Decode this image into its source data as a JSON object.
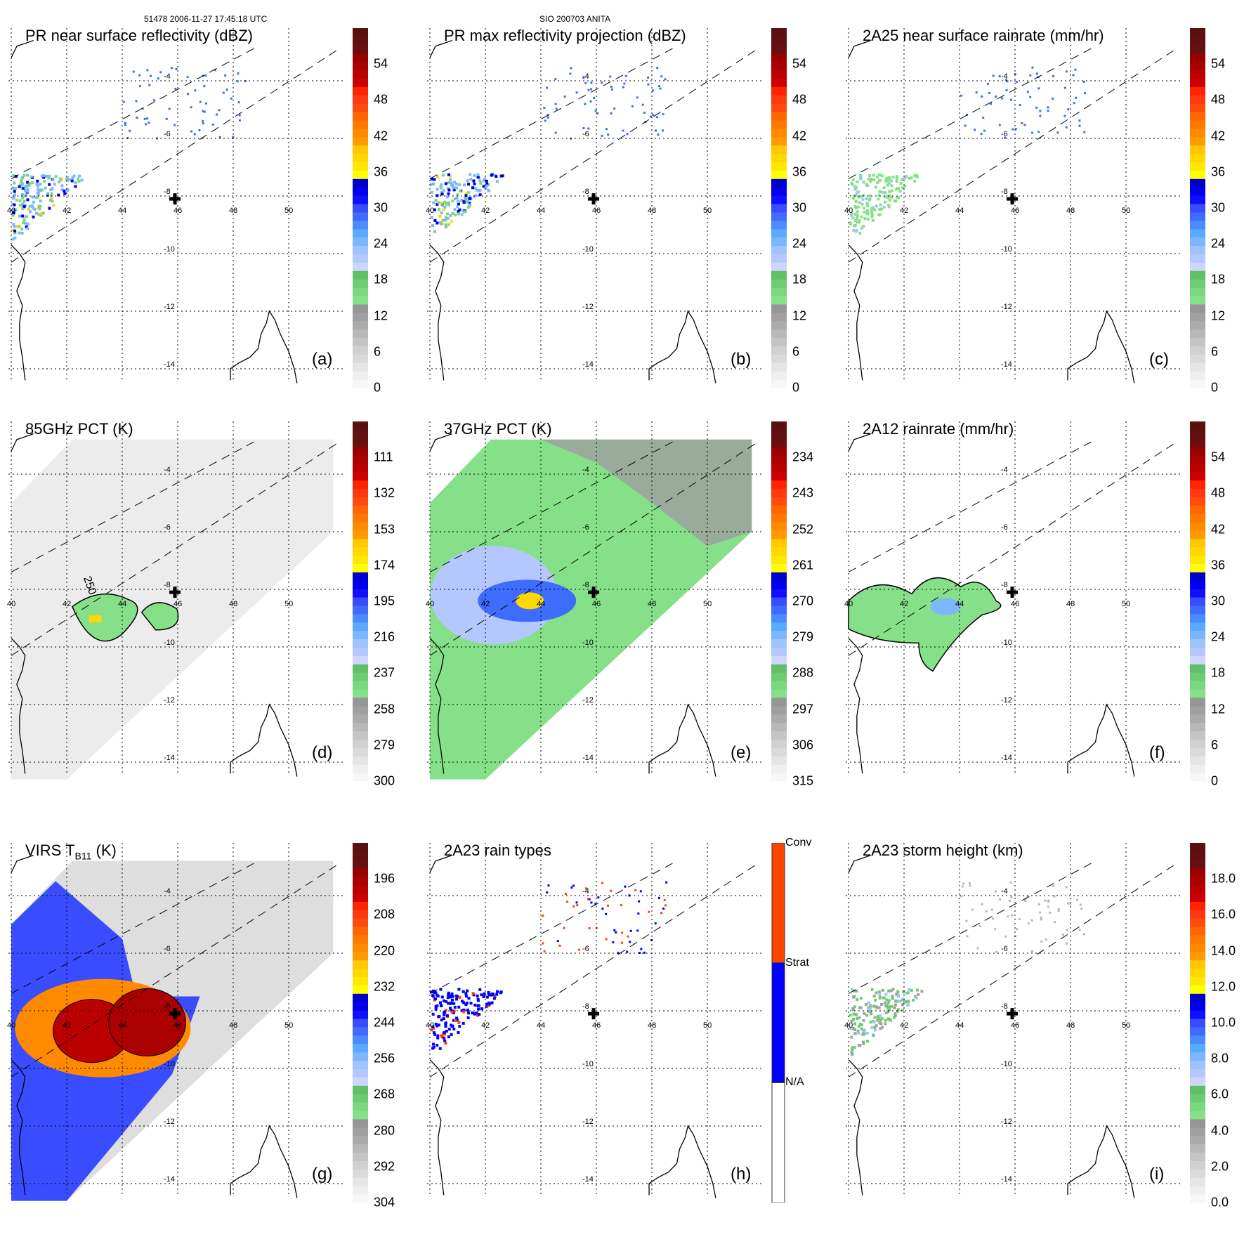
{
  "header": {
    "left": "51478 2006-11-27 17:45:18 UTC",
    "center": "SIO 200703 ANITA"
  },
  "chart_data": [
    {
      "id": "a",
      "type": "heatmap",
      "title": "PR near surface reflectivity (dBZ)",
      "panel_label": "(a)",
      "units": "dBZ",
      "colorbar_ticks": [
        "0",
        "6",
        "12",
        "18",
        "24",
        "30",
        "36",
        "42",
        "48",
        "54"
      ],
      "colorbar_range": [
        0,
        60
      ],
      "x_ticks": [
        "40",
        "42",
        "44",
        "46",
        "48",
        "50"
      ],
      "y_ticks": [
        "-4",
        "-6",
        "-8",
        "-10",
        "-12",
        "-14"
      ],
      "xlim": [
        40,
        52
      ],
      "ylim": [
        -14.5,
        -2.8
      ],
      "features": "PR swath (dashed boundaries); rain echoes mainly near 40-44E, 7.5-9.5S, max ~36-42 dBZ"
    },
    {
      "id": "b",
      "type": "heatmap",
      "title": "PR max reflectivity projection (dBZ)",
      "panel_label": "(b)",
      "units": "dBZ",
      "colorbar_ticks": [
        "0",
        "6",
        "12",
        "18",
        "24",
        "30",
        "36",
        "42",
        "48",
        "54"
      ],
      "colorbar_range": [
        0,
        60
      ],
      "x_ticks": [
        "40",
        "42",
        "44",
        "46",
        "48",
        "50"
      ],
      "y_ticks": [
        "-4",
        "-6",
        "-8",
        "-10",
        "-12",
        "-14"
      ],
      "xlim": [
        40,
        52
      ],
      "ylim": [
        -14.5,
        -2.8
      ]
    },
    {
      "id": "c",
      "type": "heatmap",
      "title": "2A25 near surface rainrate (mm/hr)",
      "panel_label": "(c)",
      "units": "mm/hr",
      "colorbar_ticks": [
        "0",
        "6",
        "12",
        "18",
        "24",
        "30",
        "36",
        "42",
        "48",
        "54"
      ],
      "colorbar_range": [
        0,
        60
      ],
      "x_ticks": [
        "40",
        "42",
        "44",
        "46",
        "48",
        "50"
      ],
      "y_ticks": [
        "-4",
        "-6",
        "-8",
        "-10",
        "-12",
        "-14"
      ],
      "xlim": [
        40,
        52
      ],
      "ylim": [
        -14.5,
        -2.8
      ]
    },
    {
      "id": "d",
      "type": "heatmap",
      "title": "85GHz PCT (K)",
      "panel_label": "(d)",
      "units": "K",
      "colorbar_ticks": [
        "300",
        "279",
        "258",
        "237",
        "216",
        "195",
        "174",
        "153",
        "132",
        "111"
      ],
      "colorbar_range": [
        300,
        90
      ],
      "x_ticks": [
        "40",
        "42",
        "44",
        "46",
        "48",
        "50"
      ],
      "y_ticks": [
        "-4",
        "-6",
        "-8",
        "-10",
        "-12",
        "-14"
      ],
      "xlim": [
        40,
        52
      ],
      "ylim": [
        -14.5,
        -2.8
      ],
      "annotations": [
        "250"
      ]
    },
    {
      "id": "e",
      "type": "heatmap",
      "title": "37GHz PCT (K)",
      "panel_label": "(e)",
      "units": "K",
      "colorbar_ticks": [
        "315",
        "306",
        "297",
        "288",
        "279",
        "270",
        "261",
        "252",
        "243",
        "234"
      ],
      "colorbar_range": [
        315,
        225
      ],
      "x_ticks": [
        "40",
        "42",
        "44",
        "46",
        "48",
        "50"
      ],
      "y_ticks": [
        "-4",
        "-6",
        "-8",
        "-10",
        "-12",
        "-14"
      ],
      "xlim": [
        40,
        52
      ],
      "ylim": [
        -14.5,
        -2.8
      ]
    },
    {
      "id": "f",
      "type": "heatmap",
      "title": "2A12 rainrate (mm/hr)",
      "panel_label": "(f)",
      "units": "mm/hr",
      "colorbar_ticks": [
        "0",
        "6",
        "12",
        "18",
        "24",
        "30",
        "36",
        "42",
        "48",
        "54"
      ],
      "colorbar_range": [
        0,
        60
      ],
      "x_ticks": [
        "40",
        "42",
        "44",
        "46",
        "48",
        "50"
      ],
      "y_ticks": [
        "-4",
        "-6",
        "-8",
        "-10",
        "-12",
        "-14"
      ],
      "xlim": [
        40,
        52
      ],
      "ylim": [
        -14.5,
        -2.8
      ]
    },
    {
      "id": "g",
      "type": "heatmap",
      "title": "VIRS T",
      "title_sub": "B11",
      "title_suffix": " (K)",
      "panel_label": "(g)",
      "units": "K",
      "colorbar_ticks": [
        "304",
        "292",
        "280",
        "268",
        "256",
        "244",
        "232",
        "220",
        "208",
        "196"
      ],
      "colorbar_range": [
        304,
        184
      ],
      "x_ticks": [
        "40",
        "42",
        "44",
        "46",
        "48",
        "50"
      ],
      "y_ticks": [
        "-4",
        "-6",
        "-8",
        "-10",
        "-12",
        "-14"
      ],
      "xlim": [
        40,
        52
      ],
      "ylim": [
        -14.5,
        -2.8
      ]
    },
    {
      "id": "h",
      "type": "heatmap",
      "title": "2A23 rain types",
      "panel_label": "(h)",
      "categories": [
        "N/A",
        "Strat",
        "Conv"
      ],
      "category_colors": [
        "#ffffff",
        "#0000ff",
        "#ff4400"
      ],
      "x_ticks": [
        "40",
        "42",
        "44",
        "46",
        "48",
        "50"
      ],
      "y_ticks": [
        "-4",
        "-6",
        "-8",
        "-10",
        "-12",
        "-14"
      ],
      "xlim": [
        40,
        52
      ],
      "ylim": [
        -14.5,
        -2.8
      ]
    },
    {
      "id": "i",
      "type": "heatmap",
      "title": "2A23 storm height (km)",
      "panel_label": "(i)",
      "units": "km",
      "colorbar_ticks": [
        "0.0",
        "2.0",
        "4.0",
        "6.0",
        "8.0",
        "10.0",
        "12.0",
        "14.0",
        "16.0",
        "18.0"
      ],
      "colorbar_range": [
        0,
        20
      ],
      "x_ticks": [
        "40",
        "42",
        "44",
        "46",
        "48",
        "50"
      ],
      "y_ticks": [
        "-4",
        "-6",
        "-8",
        "-10",
        "-12",
        "-14"
      ],
      "xlim": [
        40,
        52
      ],
      "ylim": [
        -14.5,
        -2.8
      ]
    }
  ],
  "colormap": [
    "#f7f7f7",
    "#efefef",
    "#e5e5e5",
    "#dadada",
    "#d0d0d0",
    "#c4c4c4",
    "#b8b8b8",
    "#ababab",
    "#a0a0a0",
    "#969696",
    "#86e08a",
    "#7ad77e",
    "#6ccc72",
    "#62be67",
    "#cdd6ff",
    "#b4c8ff",
    "#9ec4ff",
    "#7cb6ff",
    "#5aaaff",
    "#4a8cff",
    "#3e6cff",
    "#3a4cff",
    "#1010ff",
    "#0000ee",
    "#0000cc",
    "#ffff00",
    "#ffe800",
    "#ffd800",
    "#ffc800",
    "#ff9a00",
    "#ff8a00",
    "#ff7800",
    "#ff6600",
    "#ff4a10",
    "#ff3a10",
    "#ff2400",
    "#cc0000",
    "#bb0000",
    "#aa0000",
    "#990000",
    "#661010",
    "#601010",
    "#5a1010"
  ],
  "marker": {
    "name": "site-cross",
    "lon": 45.9,
    "lat": -8.1
  }
}
